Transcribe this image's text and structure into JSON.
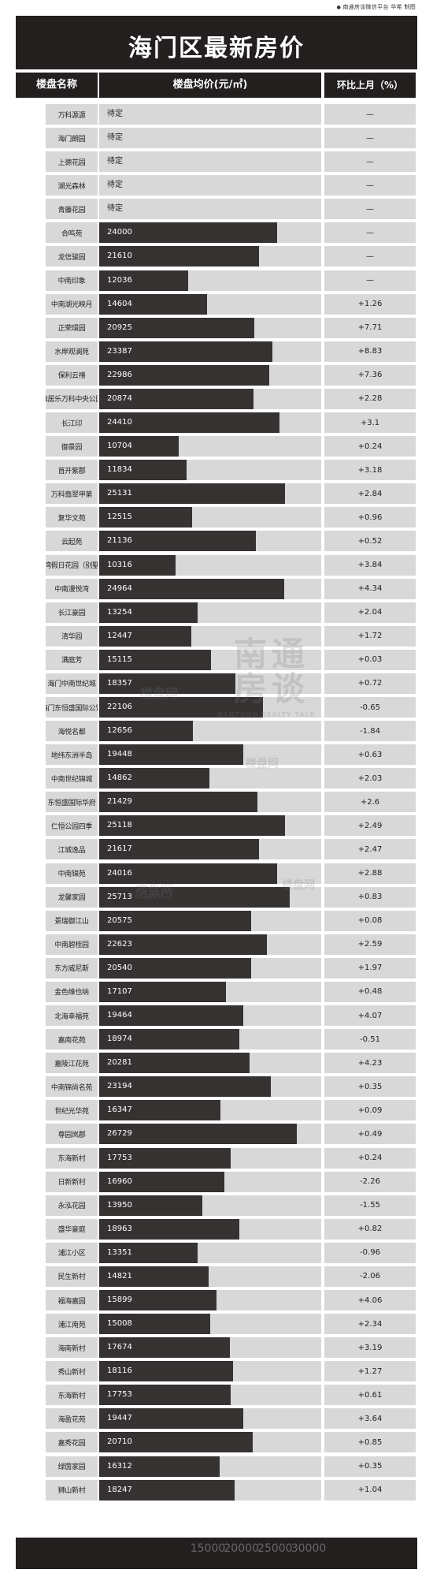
{
  "credit": "南通房谈微信平台 华希 制图",
  "chart_data": {
    "type": "bar",
    "title": "海门区最新房价",
    "columns": [
      "楼盘名称",
      "楼盘均价(元/㎡)",
      "环比上月（%）"
    ],
    "xlim": [
      0,
      30000
    ],
    "ticks": [
      "15000",
      "20000",
      "25000",
      "30000"
    ],
    "rows": [
      {
        "name": "万科源源",
        "price": null,
        "price_label": "待定",
        "change": "—"
      },
      {
        "name": "海门朗园",
        "price": null,
        "price_label": "待定",
        "change": "—"
      },
      {
        "name": "上德花园",
        "price": null,
        "price_label": "待定",
        "change": "—"
      },
      {
        "name": "湖光森林",
        "price": null,
        "price_label": "待定",
        "change": "—"
      },
      {
        "name": "青藤花园",
        "price": null,
        "price_label": "待定",
        "change": "—"
      },
      {
        "name": "合鸣苑",
        "price": 24000,
        "price_label": "24000",
        "change": "—"
      },
      {
        "name": "龙信骏园",
        "price": 21610,
        "price_label": "21610",
        "change": "—"
      },
      {
        "name": "中南印象",
        "price": 12036,
        "price_label": "12036",
        "change": "—"
      },
      {
        "name": "中南湖光映月",
        "price": 14604,
        "price_label": "14604",
        "change": "+1.26"
      },
      {
        "name": "正荣璟园",
        "price": 20925,
        "price_label": "20925",
        "change": "+7.71"
      },
      {
        "name": "水岸观澜苑",
        "price": 23387,
        "price_label": "23387",
        "change": "+8.83"
      },
      {
        "name": "保利云禧",
        "price": 22986,
        "price_label": "22986",
        "change": "+7.36"
      },
      {
        "name": "雅居乐万科中央公园",
        "price": 20874,
        "price_label": "20874",
        "change": "+2.28"
      },
      {
        "name": "长江印",
        "price": 24410,
        "price_label": "24410",
        "change": "+3.1"
      },
      {
        "name": "御景园",
        "price": 10704,
        "price_label": "10704",
        "change": "+0.24"
      },
      {
        "name": "首开紫郡",
        "price": 11834,
        "price_label": "11834",
        "change": "+3.18"
      },
      {
        "name": "万科翡翠甲第",
        "price": 25131,
        "price_label": "25131",
        "change": "+2.84"
      },
      {
        "name": "复华文苑",
        "price": 12515,
        "price_label": "12515",
        "change": "+0.96"
      },
      {
        "name": "云起苑",
        "price": 21136,
        "price_label": "21136",
        "change": "+0.52"
      },
      {
        "name": "海湾假日花园（别墅）",
        "price": 10316,
        "price_label": "10316",
        "change": "+3.84"
      },
      {
        "name": "中南漫悦湾",
        "price": 24964,
        "price_label": "24964",
        "change": "+4.34"
      },
      {
        "name": "长江豪园",
        "price": 13254,
        "price_label": "13254",
        "change": "+2.04"
      },
      {
        "name": "清华园",
        "price": 12447,
        "price_label": "12447",
        "change": "+1.72"
      },
      {
        "name": "满庭芳",
        "price": 15115,
        "price_label": "15115",
        "change": "+0.03"
      },
      {
        "name": "海门中南世纪城",
        "price": 18357,
        "price_label": "18357",
        "change": "+0.72"
      },
      {
        "name": "海门东恒盛国际公馆",
        "price": 22106,
        "price_label": "22106",
        "change": "-0.65"
      },
      {
        "name": "海悦名都",
        "price": 12656,
        "price_label": "12656",
        "change": "-1.84"
      },
      {
        "name": "地纬东洲半岛",
        "price": 19448,
        "price_label": "19448",
        "change": "+0.63"
      },
      {
        "name": "中南世纪锦城",
        "price": 14862,
        "price_label": "14862",
        "change": "+2.03"
      },
      {
        "name": "东恒盛国际华府",
        "price": 21429,
        "price_label": "21429",
        "change": "+2.6"
      },
      {
        "name": "仁恒公园四季",
        "price": 25118,
        "price_label": "25118",
        "change": "+2.49"
      },
      {
        "name": "江城逸品",
        "price": 21617,
        "price_label": "21617",
        "change": "+2.47"
      },
      {
        "name": "中南锦苑",
        "price": 24016,
        "price_label": "24016",
        "change": "+2.88"
      },
      {
        "name": "龙馨家园",
        "price": 25713,
        "price_label": "25713",
        "change": "+0.83"
      },
      {
        "name": "景瑞御江山",
        "price": 20575,
        "price_label": "20575",
        "change": "+0.08"
      },
      {
        "name": "中南碧桂园",
        "price": 22623,
        "price_label": "22623",
        "change": "+2.59"
      },
      {
        "name": "东方威尼斯",
        "price": 20540,
        "price_label": "20540",
        "change": "+1.97"
      },
      {
        "name": "金色维也纳",
        "price": 17107,
        "price_label": "17107",
        "change": "+0.48"
      },
      {
        "name": "北海幸福苑",
        "price": 19464,
        "price_label": "19464",
        "change": "+4.07"
      },
      {
        "name": "嘉南花苑",
        "price": 18974,
        "price_label": "18974",
        "change": "-0.51"
      },
      {
        "name": "嘉陵江花苑",
        "price": 20281,
        "price_label": "20281",
        "change": "+4.23"
      },
      {
        "name": "中南锦尚名苑",
        "price": 23194,
        "price_label": "23194",
        "change": "+0.35"
      },
      {
        "name": "世纪光华苑",
        "price": 16347,
        "price_label": "16347",
        "change": "+0.09"
      },
      {
        "name": "尊园岚郡",
        "price": 26729,
        "price_label": "26729",
        "change": "+0.49"
      },
      {
        "name": "东海新村",
        "price": 17753,
        "price_label": "17753",
        "change": "+0.24"
      },
      {
        "name": "日新新村",
        "price": 16960,
        "price_label": "16960",
        "change": "-2.26"
      },
      {
        "name": "永泓花园",
        "price": 13950,
        "price_label": "13950",
        "change": "-1.55"
      },
      {
        "name": "盛华豪庭",
        "price": 18963,
        "price_label": "18963",
        "change": "+0.82"
      },
      {
        "name": "浦江小区",
        "price": 13351,
        "price_label": "13351",
        "change": "-0.96"
      },
      {
        "name": "民生新村",
        "price": 14821,
        "price_label": "14821",
        "change": "-2.06"
      },
      {
        "name": "福海嘉园",
        "price": 15899,
        "price_label": "15899",
        "change": "+4.06"
      },
      {
        "name": "浦江南苑",
        "price": 15008,
        "price_label": "15008",
        "change": "+2.34"
      },
      {
        "name": "海南新村",
        "price": 17674,
        "price_label": "17674",
        "change": "+3.19"
      },
      {
        "name": "秀山新村",
        "price": 18116,
        "price_label": "18116",
        "change": "+1.27"
      },
      {
        "name": "东海新村",
        "price": 17753,
        "price_label": "17753",
        "change": "+0.61"
      },
      {
        "name": "海盈花苑",
        "price": 19447,
        "price_label": "19447",
        "change": "+3.64"
      },
      {
        "name": "嘉秀花园",
        "price": 20710,
        "price_label": "20710",
        "change": "+0.85"
      },
      {
        "name": "绿茵家园",
        "price": 16312,
        "price_label": "16312",
        "change": "+0.35"
      },
      {
        "name": "狮山新村",
        "price": 18247,
        "price_label": "18247",
        "change": "+1.04"
      }
    ]
  },
  "watermarks": {
    "logo_main": "南通房谈",
    "logo_sub": "NANTONG REALTY TALK",
    "site_name": "楼盘网",
    "site_domain": "loupan.com"
  }
}
